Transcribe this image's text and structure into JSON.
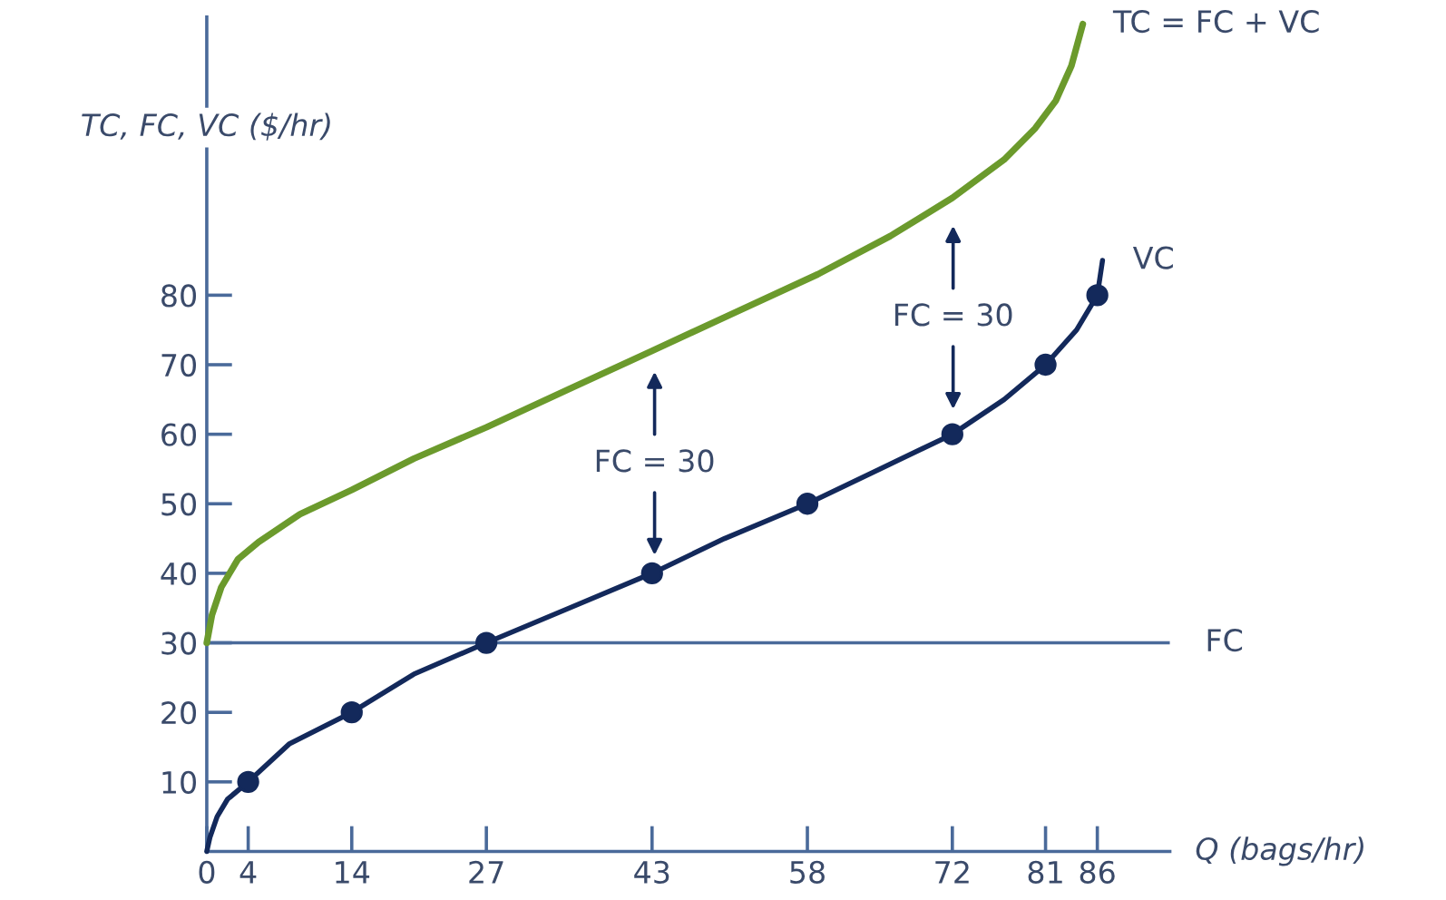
{
  "chart_data": {
    "type": "line",
    "xlabel": "Q (bags/hr)",
    "ylabel": "TC, FC, VC ($/hr)",
    "xlim": [
      0,
      93
    ],
    "ylim": [
      0,
      120
    ],
    "xticks": [
      0,
      4,
      14,
      27,
      43,
      58,
      72,
      81,
      86
    ],
    "yticks": [
      10,
      20,
      30,
      40,
      50,
      60,
      70,
      80
    ],
    "grid": false,
    "legend": false,
    "line_style": "solid",
    "series": [
      {
        "name": "TC = FC + VC",
        "color": "#6b9a2c",
        "marker": "none",
        "x": [
          0,
          0.5,
          1.4,
          3,
          5,
          9,
          14,
          20,
          27,
          35,
          43,
          51,
          59,
          66,
          72,
          77,
          80,
          82,
          83.5,
          84.6
        ],
        "values": [
          30,
          34,
          38,
          42,
          44.5,
          48.5,
          52,
          56.5,
          61,
          66.5,
          72,
          77.5,
          83,
          88.5,
          94,
          99.5,
          104,
          108,
          113,
          119
        ]
      },
      {
        "name": "VC",
        "color": "#13295b",
        "marker": "none",
        "x": [
          0,
          0.3,
          1,
          2,
          4,
          8,
          14,
          20,
          27,
          35,
          43,
          50,
          58,
          65,
          72,
          77,
          81,
          84,
          86,
          86.5
        ],
        "values": [
          0,
          2,
          5,
          7.5,
          10,
          15.5,
          20,
          25.5,
          30,
          35,
          40,
          45,
          50,
          55,
          60,
          65,
          70,
          75,
          80,
          85
        ]
      },
      {
        "type": "scatter",
        "color": "#13295b",
        "marker": "circle",
        "x": [
          4,
          14,
          27,
          43,
          58,
          72,
          81,
          86
        ],
        "values": [
          10,
          20,
          30,
          40,
          50,
          60,
          70,
          80
        ]
      }
    ],
    "ref_lines": [
      {
        "axis": "y",
        "value": 30,
        "label": "FC",
        "color": "#4a6a9a"
      }
    ],
    "annotations": [
      "FC = 30",
      "FC = 30"
    ]
  }
}
